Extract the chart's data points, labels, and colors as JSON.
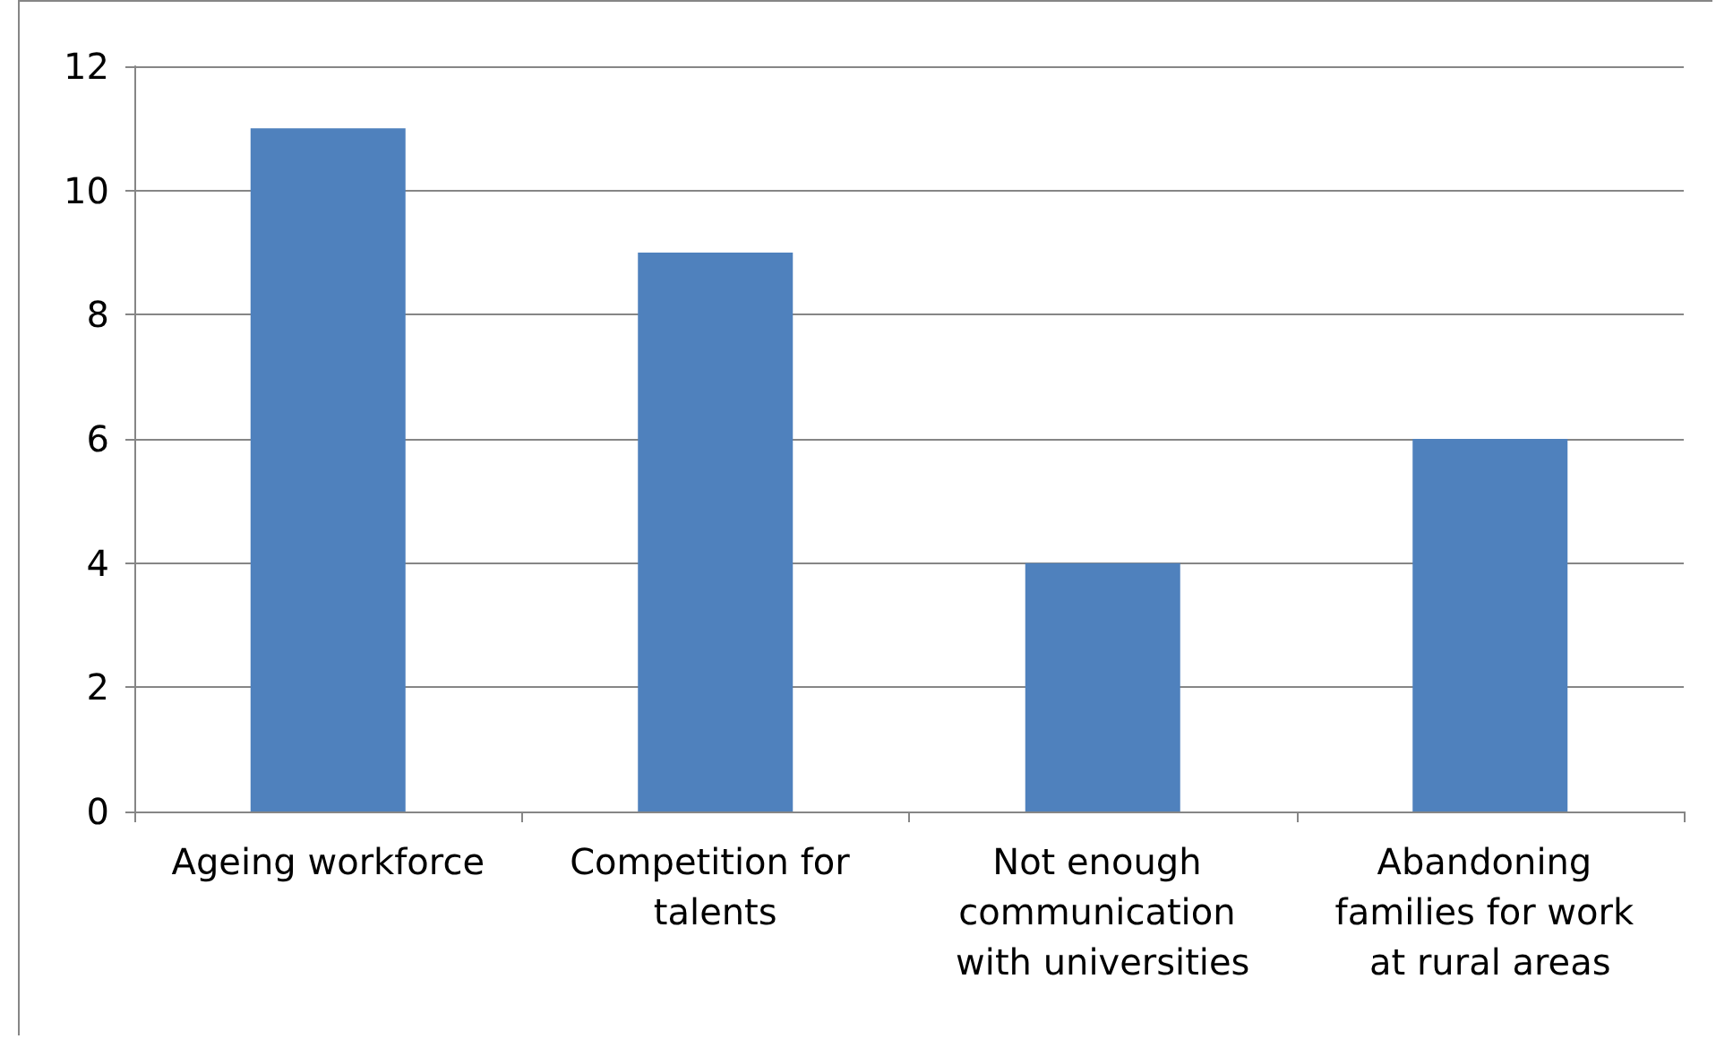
{
  "chart_data": {
    "type": "bar",
    "categories": [
      "Ageing workforce",
      "Competition for talents",
      "Not enough communication with universities",
      "Abandoning families for work at rural areas"
    ],
    "values": [
      11,
      9,
      4,
      6
    ],
    "color": "#4f81bd",
    "ylim": [
      0,
      12
    ],
    "yticks": [
      0,
      2,
      4,
      6,
      8,
      10,
      12
    ],
    "grid": "y"
  }
}
